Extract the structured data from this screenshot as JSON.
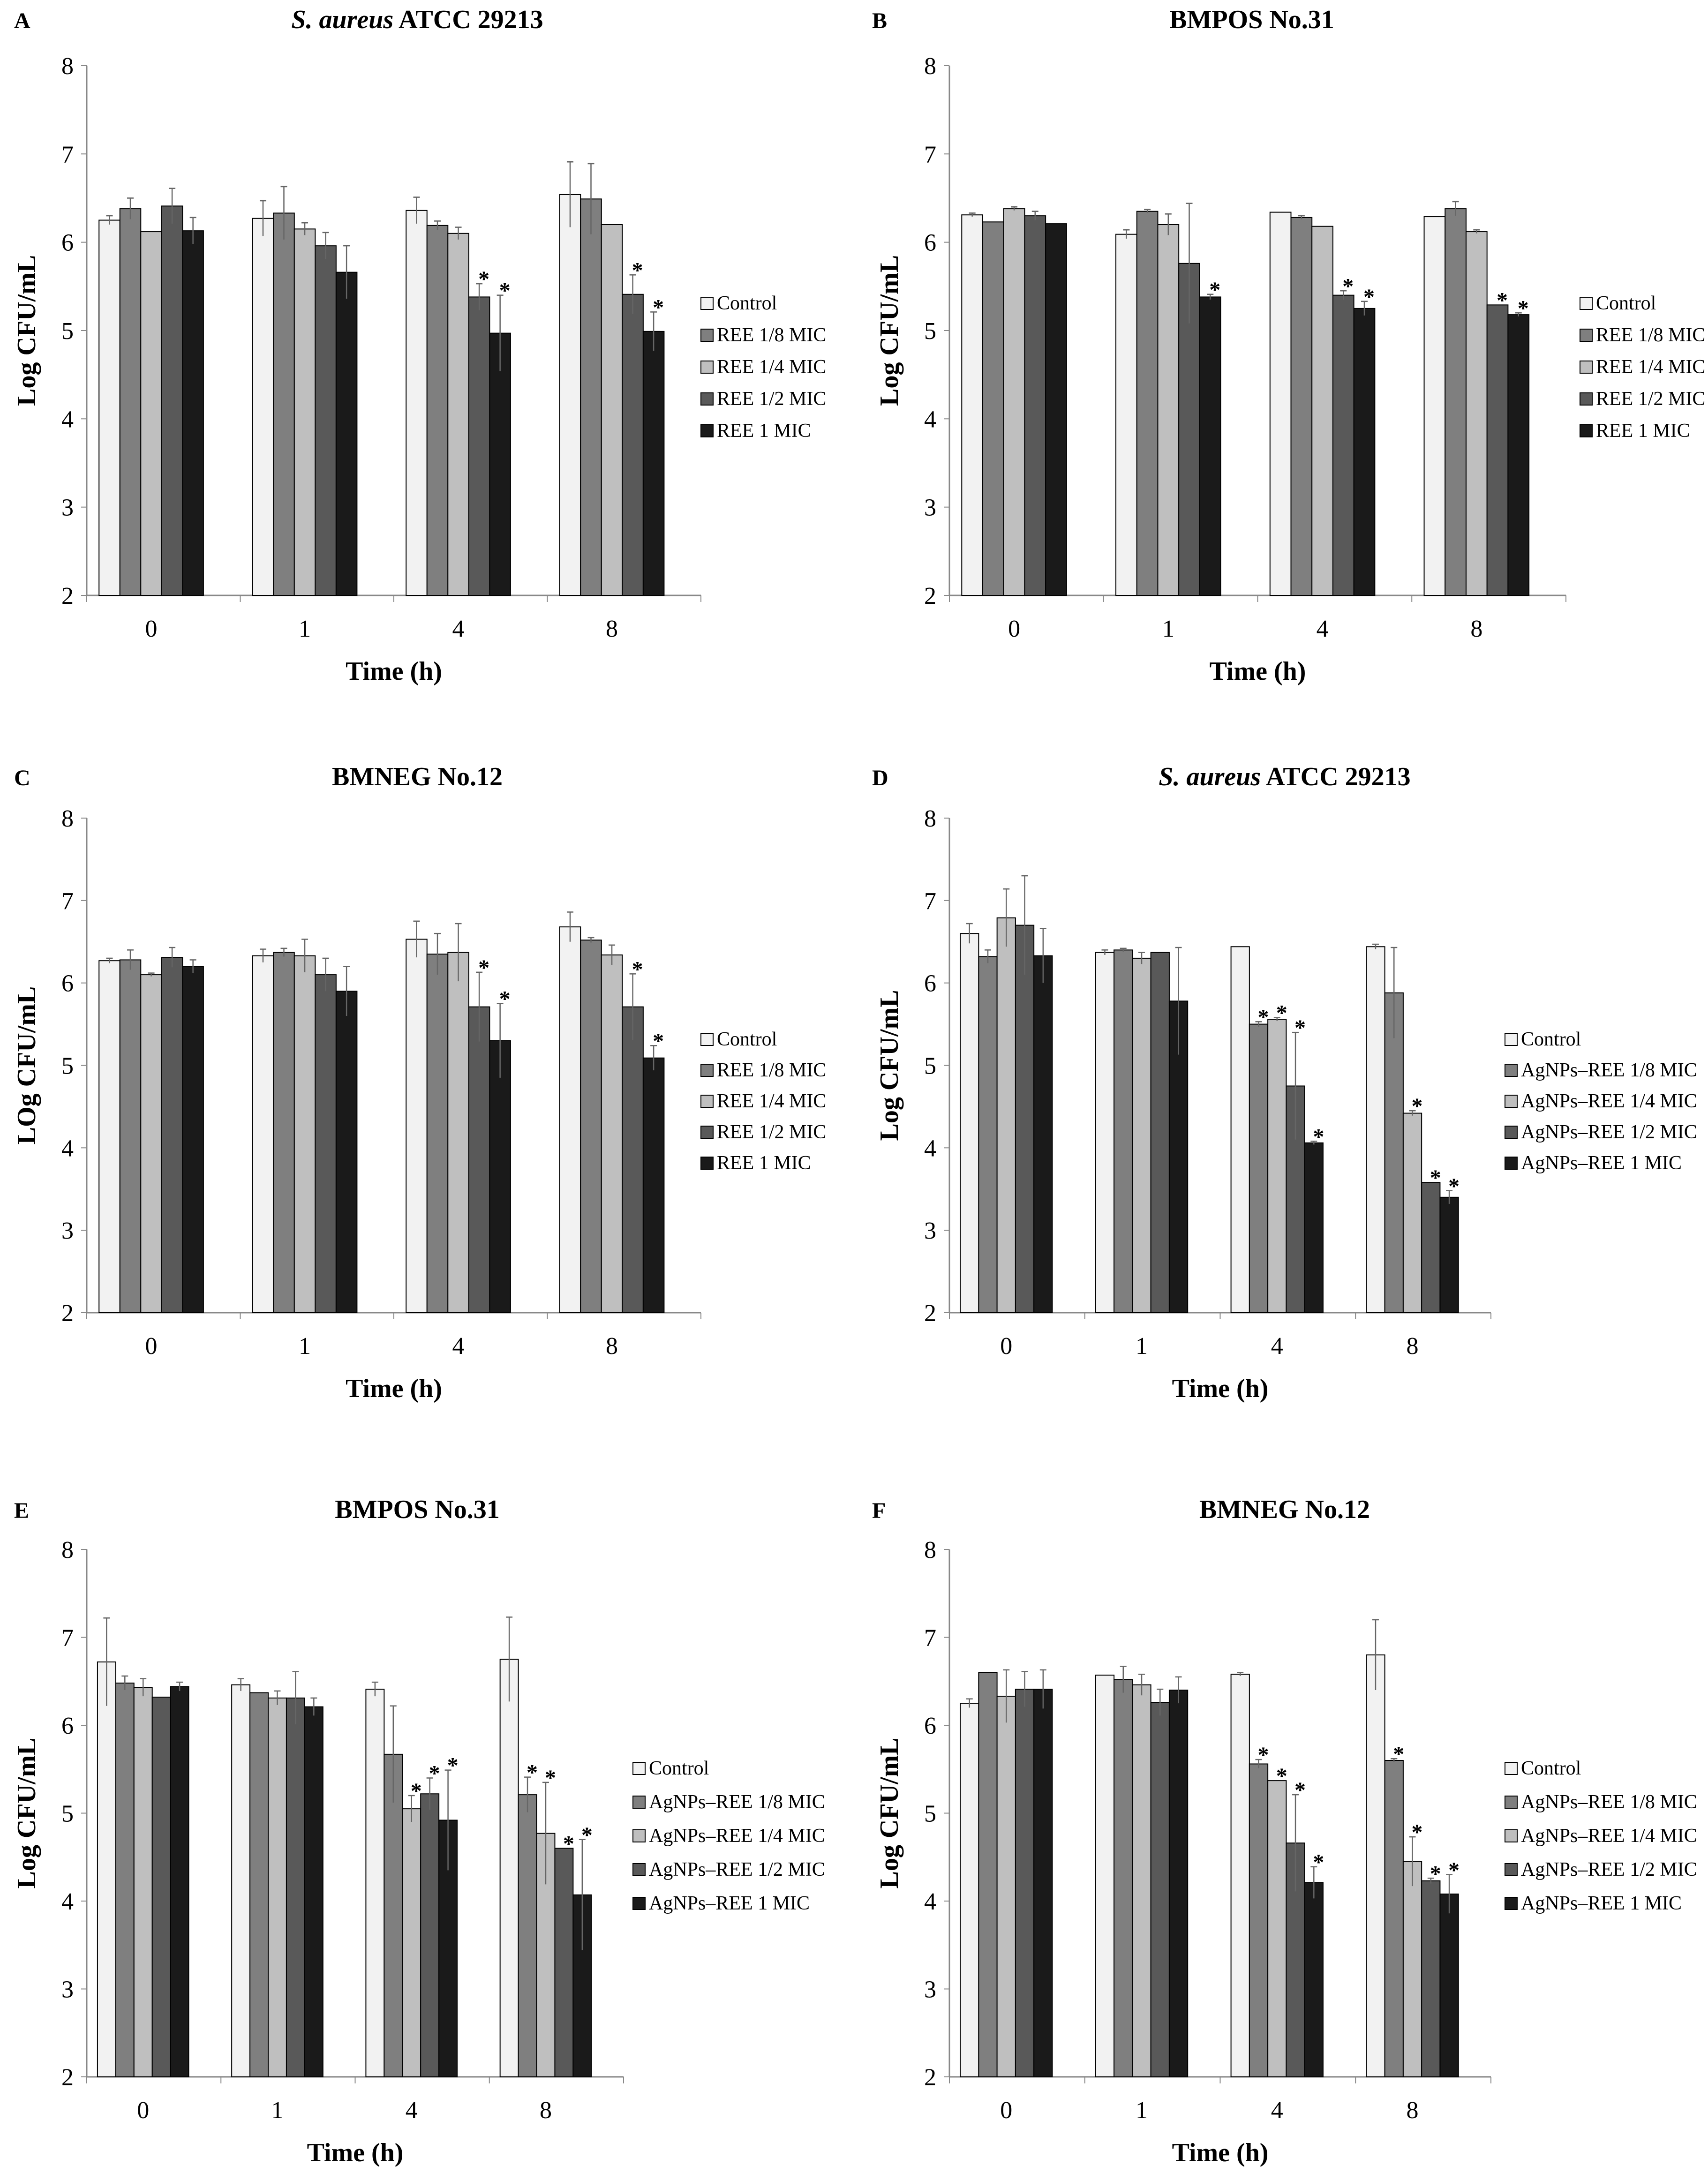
{
  "figure": {
    "legend_colors": [
      "#f2f2f2",
      "#7f7f7f",
      "#bfbfbf",
      "#595959",
      "#1a1a1a"
    ]
  },
  "chart_data": [
    {
      "type": "bar",
      "panel": "A",
      "title_italic": "S. aureus",
      "title_rest": " ATCC 29213",
      "xlabel": "Time (h)",
      "ylabel": "Log CFU/mL",
      "ylim": [
        2,
        8
      ],
      "yticks": [
        "2",
        "3",
        "4",
        "5",
        "6",
        "7",
        "8"
      ],
      "categories": [
        "0",
        "1",
        "4",
        "8"
      ],
      "series": [
        {
          "name": "Control",
          "values": [
            6.25,
            6.27,
            6.36,
            6.54
          ],
          "errors": [
            0.05,
            0.2,
            0.15,
            0.37
          ],
          "stars": [
            false,
            false,
            false,
            false
          ]
        },
        {
          "name": "REE 1/8 MIC",
          "values": [
            6.38,
            6.33,
            6.19,
            6.49
          ],
          "errors": [
            0.12,
            0.3,
            0.05,
            0.4
          ],
          "stars": [
            false,
            false,
            false,
            false
          ]
        },
        {
          "name": "REE 1/4 MIC",
          "values": [
            6.12,
            6.15,
            6.1,
            6.2
          ],
          "errors": [
            0.0,
            0.07,
            0.07,
            0.0
          ],
          "stars": [
            false,
            false,
            false,
            false
          ]
        },
        {
          "name": "REE 1/2 MIC",
          "values": [
            6.41,
            5.96,
            5.38,
            5.41
          ],
          "errors": [
            0.2,
            0.15,
            0.15,
            0.22
          ],
          "stars": [
            false,
            false,
            true,
            true
          ]
        },
        {
          "name": "REE 1 MIC",
          "values": [
            6.13,
            5.66,
            4.97,
            4.99
          ],
          "errors": [
            0.15,
            0.3,
            0.43,
            0.22
          ],
          "stars": [
            false,
            false,
            true,
            true
          ]
        }
      ]
    },
    {
      "type": "bar",
      "panel": "B",
      "title_italic": "",
      "title_rest": "BMPOS No.31",
      "xlabel": "Time (h)",
      "ylabel": "Log CFU/mL",
      "ylim": [
        2,
        8
      ],
      "yticks": [
        "2",
        "3",
        "4",
        "5",
        "6",
        "7",
        "8"
      ],
      "categories": [
        "0",
        "1",
        "4",
        "8"
      ],
      "series": [
        {
          "name": "Control",
          "values": [
            6.31,
            6.09,
            6.34,
            6.29
          ],
          "errors": [
            0.02,
            0.05,
            0.0,
            0.0
          ],
          "stars": [
            false,
            false,
            false,
            false
          ]
        },
        {
          "name": "REE 1/8 MIC",
          "values": [
            6.23,
            6.35,
            6.28,
            6.38
          ],
          "errors": [
            0.0,
            0.02,
            0.02,
            0.08
          ],
          "stars": [
            false,
            false,
            false,
            false
          ]
        },
        {
          "name": "REE 1/4 MIC",
          "values": [
            6.38,
            6.2,
            6.18,
            6.12
          ],
          "errors": [
            0.02,
            0.12,
            0.0,
            0.02
          ],
          "stars": [
            false,
            false,
            false,
            false
          ]
        },
        {
          "name": "REE 1/2 MIC",
          "values": [
            6.3,
            5.76,
            5.4,
            5.29
          ],
          "errors": [
            0.05,
            0.68,
            0.05,
            0.0
          ],
          "stars": [
            false,
            false,
            true,
            true
          ]
        },
        {
          "name": "REE 1 MIC",
          "values": [
            6.21,
            5.38,
            5.25,
            5.18
          ],
          "errors": [
            0.0,
            0.03,
            0.08,
            0.02
          ],
          "stars": [
            false,
            true,
            true,
            true
          ]
        }
      ]
    },
    {
      "type": "bar",
      "panel": "C",
      "title_italic": "",
      "title_rest": "BMNEG No.12",
      "xlabel": "Time (h)",
      "ylabel": "LOg CFU/mL",
      "ylim": [
        2,
        8
      ],
      "yticks": [
        "2",
        "3",
        "4",
        "5",
        "6",
        "7",
        "8"
      ],
      "categories": [
        "0",
        "1",
        "4",
        "8"
      ],
      "series": [
        {
          "name": "Control",
          "values": [
            6.27,
            6.33,
            6.53,
            6.68
          ],
          "errors": [
            0.03,
            0.08,
            0.22,
            0.18
          ],
          "stars": [
            false,
            false,
            false,
            false
          ]
        },
        {
          "name": "REE 1/8 MIC",
          "values": [
            6.28,
            6.37,
            6.35,
            6.52
          ],
          "errors": [
            0.12,
            0.05,
            0.25,
            0.03
          ],
          "stars": [
            false,
            false,
            false,
            false
          ]
        },
        {
          "name": "REE 1/4 MIC",
          "values": [
            6.1,
            6.33,
            6.37,
            6.34
          ],
          "errors": [
            0.02,
            0.2,
            0.35,
            0.12
          ],
          "stars": [
            false,
            false,
            false,
            false
          ]
        },
        {
          "name": "REE 1/2 MIC",
          "values": [
            6.31,
            6.1,
            5.71,
            5.71
          ],
          "errors": [
            0.12,
            0.2,
            0.42,
            0.4
          ],
          "stars": [
            false,
            false,
            true,
            true
          ]
        },
        {
          "name": "REE 1 MIC",
          "values": [
            6.2,
            5.9,
            5.3,
            5.09
          ],
          "errors": [
            0.08,
            0.3,
            0.45,
            0.15
          ],
          "stars": [
            false,
            false,
            true,
            true
          ]
        }
      ]
    },
    {
      "type": "bar",
      "panel": "D",
      "title_italic": "S. aureus",
      "title_rest": " ATCC 29213",
      "xlabel": "Time (h)",
      "ylabel": "Log CFU/mL",
      "ylim": [
        2,
        8
      ],
      "yticks": [
        "2",
        "3",
        "4",
        "5",
        "6",
        "7",
        "8"
      ],
      "categories": [
        "0",
        "1",
        "4",
        "8"
      ],
      "series": [
        {
          "name": "Control",
          "values": [
            6.6,
            6.37,
            6.44,
            6.44
          ],
          "errors": [
            0.12,
            0.03,
            0.0,
            0.03
          ],
          "stars": [
            false,
            false,
            false,
            false
          ]
        },
        {
          "name": "AgNPs–REE 1/8 MIC",
          "values": [
            6.32,
            6.4,
            5.5,
            5.88
          ],
          "errors": [
            0.08,
            0.02,
            0.03,
            0.55
          ],
          "stars": [
            false,
            false,
            true,
            false
          ]
        },
        {
          "name": "AgNPs–REE 1/4 MIC",
          "values": [
            6.79,
            6.3,
            5.56,
            4.42
          ],
          "errors": [
            0.35,
            0.07,
            0.02,
            0.03
          ],
          "stars": [
            false,
            false,
            true,
            true
          ]
        },
        {
          "name": "AgNPs–REE 1/2 MIC",
          "values": [
            6.7,
            6.37,
            4.75,
            3.58
          ],
          "errors": [
            0.6,
            0.0,
            0.65,
            0.0
          ],
          "stars": [
            false,
            false,
            true,
            true
          ]
        },
        {
          "name": "AgNPs–REE 1 MIC",
          "values": [
            6.33,
            5.78,
            4.06,
            3.4
          ],
          "errors": [
            0.33,
            0.65,
            0.02,
            0.08
          ],
          "stars": [
            false,
            false,
            true,
            true
          ]
        }
      ]
    },
    {
      "type": "bar",
      "panel": "E",
      "title_italic": "",
      "title_rest": "BMPOS No.31",
      "xlabel": "Time (h)",
      "ylabel": "Log CFU/mL",
      "ylim": [
        2,
        8
      ],
      "yticks": [
        "2",
        "3",
        "4",
        "5",
        "6",
        "7",
        "8"
      ],
      "categories": [
        "0",
        "1",
        "4",
        "8"
      ],
      "series": [
        {
          "name": "Control",
          "values": [
            6.72,
            6.46,
            6.41,
            6.75
          ],
          "errors": [
            0.5,
            0.07,
            0.08,
            0.48
          ],
          "stars": [
            false,
            false,
            false,
            false
          ]
        },
        {
          "name": "AgNPs–REE 1/8 MIC",
          "values": [
            6.48,
            6.37,
            5.67,
            5.21
          ],
          "errors": [
            0.08,
            0.0,
            0.55,
            0.2
          ],
          "stars": [
            false,
            false,
            false,
            true
          ]
        },
        {
          "name": "AgNPs–REE 1/4 MIC",
          "values": [
            6.43,
            6.31,
            5.05,
            4.77
          ],
          "errors": [
            0.1,
            0.08,
            0.15,
            0.58
          ],
          "stars": [
            false,
            false,
            true,
            true
          ]
        },
        {
          "name": "AgNPs–REE 1/2 MIC",
          "values": [
            6.32,
            6.31,
            5.22,
            4.6
          ],
          "errors": [
            0.0,
            0.3,
            0.18,
            0.0
          ],
          "stars": [
            false,
            false,
            true,
            true
          ]
        },
        {
          "name": "AgNPs–REE 1 MIC",
          "values": [
            6.44,
            6.21,
            4.92,
            4.07
          ],
          "errors": [
            0.05,
            0.1,
            0.57,
            0.63
          ],
          "stars": [
            false,
            false,
            true,
            true
          ]
        }
      ]
    },
    {
      "type": "bar",
      "panel": "F",
      "title_italic": "",
      "title_rest": "BMNEG No.12",
      "xlabel": "Time (h)",
      "ylabel": "Log CFU/mL",
      "ylim": [
        2,
        8
      ],
      "yticks": [
        "2",
        "3",
        "4",
        "5",
        "6",
        "7",
        "8"
      ],
      "categories": [
        "0",
        "1",
        "4",
        "8"
      ],
      "series": [
        {
          "name": "Control",
          "values": [
            6.25,
            6.57,
            6.58,
            6.8
          ],
          "errors": [
            0.05,
            0.0,
            0.02,
            0.4
          ],
          "stars": [
            false,
            false,
            false,
            false
          ]
        },
        {
          "name": "AgNPs–REE 1/8 MIC",
          "values": [
            6.6,
            6.52,
            5.56,
            5.6
          ],
          "errors": [
            0.0,
            0.15,
            0.05,
            0.02
          ],
          "stars": [
            false,
            false,
            true,
            true
          ]
        },
        {
          "name": "AgNPs–REE 1/4 MIC",
          "values": [
            6.33,
            6.46,
            5.37,
            4.45
          ],
          "errors": [
            0.3,
            0.12,
            0.0,
            0.28
          ],
          "stars": [
            false,
            false,
            true,
            true
          ]
        },
        {
          "name": "AgNPs–REE 1/2 MIC",
          "values": [
            6.41,
            6.26,
            4.66,
            4.23
          ],
          "errors": [
            0.2,
            0.15,
            0.55,
            0.03
          ],
          "stars": [
            false,
            false,
            true,
            true
          ]
        },
        {
          "name": "AgNPs–REE 1 MIC",
          "values": [
            6.41,
            6.4,
            4.21,
            4.08
          ],
          "errors": [
            0.22,
            0.15,
            0.18,
            0.22
          ],
          "stars": [
            false,
            false,
            true,
            true
          ]
        }
      ]
    }
  ]
}
